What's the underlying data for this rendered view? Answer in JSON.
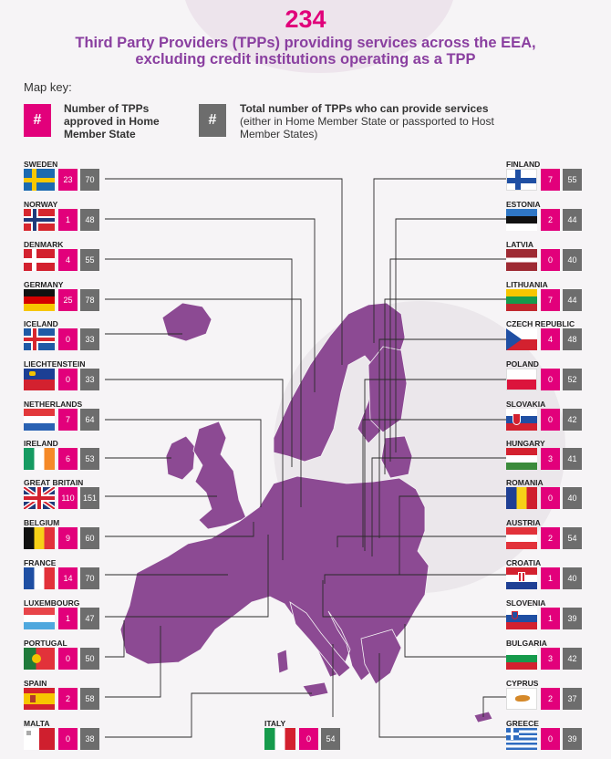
{
  "header": {
    "total": "234",
    "line1": "Third Party Providers (TPPs)  providing services across the EEA,",
    "line2": "excluding credit institutions operating as a TPP"
  },
  "key": {
    "title": "Map key:",
    "symbol": "#",
    "home_label": "Number of TPPs approved in Home Member State",
    "total_label_bold": "Total number of TPPs who can provide services",
    "total_label_rest": "(either in Home Member State or passported to Host Member States)"
  },
  "colors": {
    "accent": "#e2007b",
    "title_purple": "#8a3fa0",
    "map": "#8c4a93",
    "grey_box": "#6d6d6d"
  },
  "countries": [
    {
      "name": "SWEDEN",
      "home": "23",
      "total": "70"
    },
    {
      "name": "NORWAY",
      "home": "1",
      "total": "48"
    },
    {
      "name": "DENMARK",
      "home": "4",
      "total": "55"
    },
    {
      "name": "GERMANY",
      "home": "25",
      "total": "78"
    },
    {
      "name": "ICELAND",
      "home": "0",
      "total": "33"
    },
    {
      "name": "LIECHTENSTEIN",
      "home": "0",
      "total": "33"
    },
    {
      "name": "NETHERLANDS",
      "home": "7",
      "total": "64"
    },
    {
      "name": "IRELAND",
      "home": "6",
      "total": "53"
    },
    {
      "name": "GREAT BRITAIN",
      "home": "110",
      "total": "151"
    },
    {
      "name": "BELGIUM",
      "home": "9",
      "total": "60"
    },
    {
      "name": "FRANCE",
      "home": "14",
      "total": "70"
    },
    {
      "name": "LUXEMBOURG",
      "home": "1",
      "total": "47"
    },
    {
      "name": "PORTUGAL",
      "home": "0",
      "total": "50"
    },
    {
      "name": "SPAIN",
      "home": "2",
      "total": "58"
    },
    {
      "name": "MALTA",
      "home": "0",
      "total": "38"
    },
    {
      "name": "ITALY",
      "home": "0",
      "total": "54"
    },
    {
      "name": "FINLAND",
      "home": "7",
      "total": "55"
    },
    {
      "name": "ESTONIA",
      "home": "2",
      "total": "44"
    },
    {
      "name": "LATVIA",
      "home": "0",
      "total": "40"
    },
    {
      "name": "LITHUANIA",
      "home": "7",
      "total": "44"
    },
    {
      "name": "CZECH REPUBLIC",
      "home": "4",
      "total": "48"
    },
    {
      "name": "POLAND",
      "home": "0",
      "total": "52"
    },
    {
      "name": "SLOVAKIA",
      "home": "0",
      "total": "42"
    },
    {
      "name": "HUNGARY",
      "home": "3",
      "total": "41"
    },
    {
      "name": "ROMANIA",
      "home": "0",
      "total": "40"
    },
    {
      "name": "AUSTRIA",
      "home": "2",
      "total": "54"
    },
    {
      "name": "CROATIA",
      "home": "1",
      "total": "40"
    },
    {
      "name": "SLOVENIA",
      "home": "1",
      "total": "39"
    },
    {
      "name": "BULGARIA",
      "home": "3",
      "total": "42"
    },
    {
      "name": "CYPRUS",
      "home": "2",
      "total": "37"
    },
    {
      "name": "GREECE",
      "home": "0",
      "total": "39"
    }
  ]
}
